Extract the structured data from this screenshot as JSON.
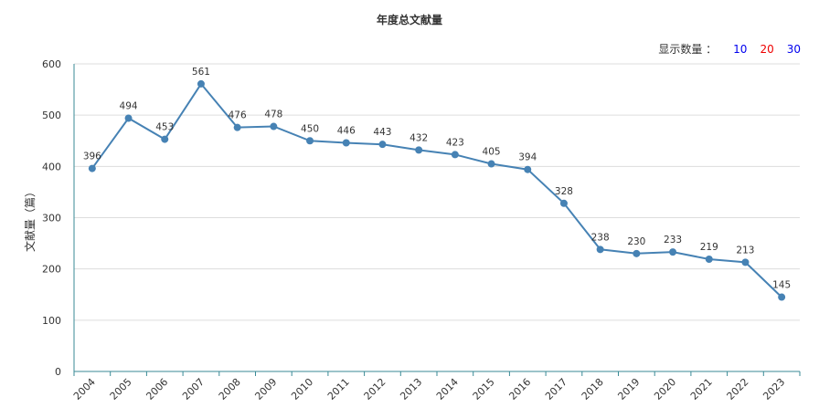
{
  "colors": {
    "line": "#4682b4",
    "axis": "#3a8a96",
    "grid": "#dddddd",
    "count_10": "#0000ee",
    "count_20": "#ee0000",
    "count_30": "#0000ee"
  },
  "display_count": {
    "label": "显示数量 ：",
    "options": [
      "10",
      "20",
      "30"
    ]
  },
  "chart_data": {
    "type": "line",
    "title": "年度总文献量",
    "xlabel": "",
    "ylabel": "文献量（篇）",
    "ylim": [
      0,
      600
    ],
    "yticks": [
      "0",
      "100",
      "200",
      "300",
      "400",
      "500",
      "600"
    ],
    "categories": [
      "2004",
      "2005",
      "2006",
      "2007",
      "2008",
      "2009",
      "2010",
      "2011",
      "2012",
      "2013",
      "2014",
      "2015",
      "2016",
      "2017",
      "2018",
      "2019",
      "2020",
      "2021",
      "2022",
      "2023"
    ],
    "series": [
      {
        "values": [
          396,
          494,
          453,
          561,
          476,
          478,
          450,
          446,
          443,
          432,
          423,
          405,
          394,
          328,
          238,
          230,
          233,
          219,
          213,
          145
        ]
      }
    ],
    "data_labels": true,
    "grid": true,
    "legend": "none"
  }
}
